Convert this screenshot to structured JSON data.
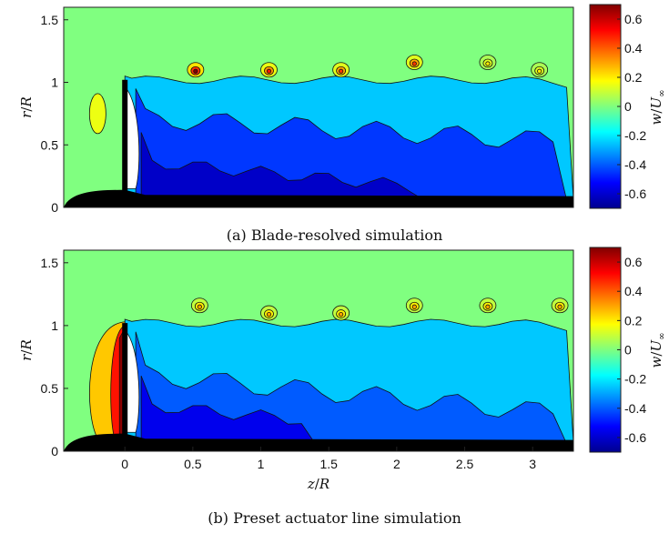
{
  "figure": {
    "x_label_parts": [
      "z",
      "/",
      "R"
    ],
    "y_label_parts": [
      "r",
      "/",
      "R"
    ],
    "colorbar_label_parts": [
      "w",
      "/",
      "U",
      "∞"
    ]
  },
  "chart_data": [
    {
      "type": "heatmap",
      "caption": "(a) Blade-resolved simulation",
      "xlim": [
        -0.45,
        3.3
      ],
      "ylim": [
        0,
        1.6
      ],
      "x_ticks": [],
      "y_ticks": [
        0,
        0.5,
        1,
        1.5
      ],
      "y_tick_labels": [
        "0",
        "0.5",
        "1",
        "1.5"
      ],
      "colorbar": {
        "min": -0.7,
        "max": 0.7,
        "ticks": [
          0.6,
          0.4,
          0.2,
          0,
          -0.2,
          -0.4,
          -0.6
        ],
        "tick_labels": [
          "0.6",
          "0.4",
          "0.2",
          "0",
          "-0.2",
          "-0.4",
          "-0.6"
        ]
      },
      "wake_edge_r": 1.05,
      "wake_end_z": 3.3,
      "freestream_value": 0.0,
      "wake_values": [
        -0.25,
        -0.45,
        -0.6
      ],
      "tip_vortices": [
        {
          "z": 0.52,
          "r": 1.1,
          "peak": 0.7
        },
        {
          "z": 1.06,
          "r": 1.1,
          "peak": 0.5
        },
        {
          "z": 1.59,
          "r": 1.1,
          "peak": 0.45
        },
        {
          "z": 2.13,
          "r": 1.16,
          "peak": 0.45
        },
        {
          "z": 2.67,
          "r": 1.16,
          "peak": 0.2
        },
        {
          "z": 3.05,
          "r": 1.1,
          "peak": 0.2
        }
      ]
    },
    {
      "type": "heatmap",
      "caption": "(b) Preset actuator line simulation",
      "xlim": [
        -0.45,
        3.3
      ],
      "ylim": [
        0,
        1.6
      ],
      "x_ticks": [
        0,
        0.5,
        1,
        1.5,
        2,
        2.5,
        3
      ],
      "x_tick_labels": [
        "0",
        "0.5",
        "1",
        "1.5",
        "2",
        "2.5",
        "3"
      ],
      "y_ticks": [
        0,
        0.5,
        1,
        1.5
      ],
      "y_tick_labels": [
        "0",
        "0.5",
        "1",
        "1.5"
      ],
      "colorbar": {
        "min": -0.7,
        "max": 0.7,
        "ticks": [
          0.6,
          0.4,
          0.2,
          0,
          -0.2,
          -0.4,
          -0.6
        ],
        "tick_labels": [
          "0.6",
          "0.4",
          "0.2",
          "0",
          "-0.2",
          "-0.4",
          "-0.6"
        ]
      },
      "wake_edge_r": 1.05,
      "wake_end_z": 3.3,
      "freestream_value": 0.0,
      "wake_values": [
        -0.25,
        -0.4,
        -0.55
      ],
      "tip_vortices": [
        {
          "z": 0.55,
          "r": 1.16,
          "peak": 0.3
        },
        {
          "z": 1.06,
          "r": 1.1,
          "peak": 0.3
        },
        {
          "z": 1.59,
          "r": 1.1,
          "peak": 0.3
        },
        {
          "z": 2.13,
          "r": 1.16,
          "peak": 0.3
        },
        {
          "z": 2.67,
          "r": 1.16,
          "peak": 0.3
        },
        {
          "z": 3.2,
          "r": 1.16,
          "peak": 0.3
        }
      ]
    }
  ]
}
